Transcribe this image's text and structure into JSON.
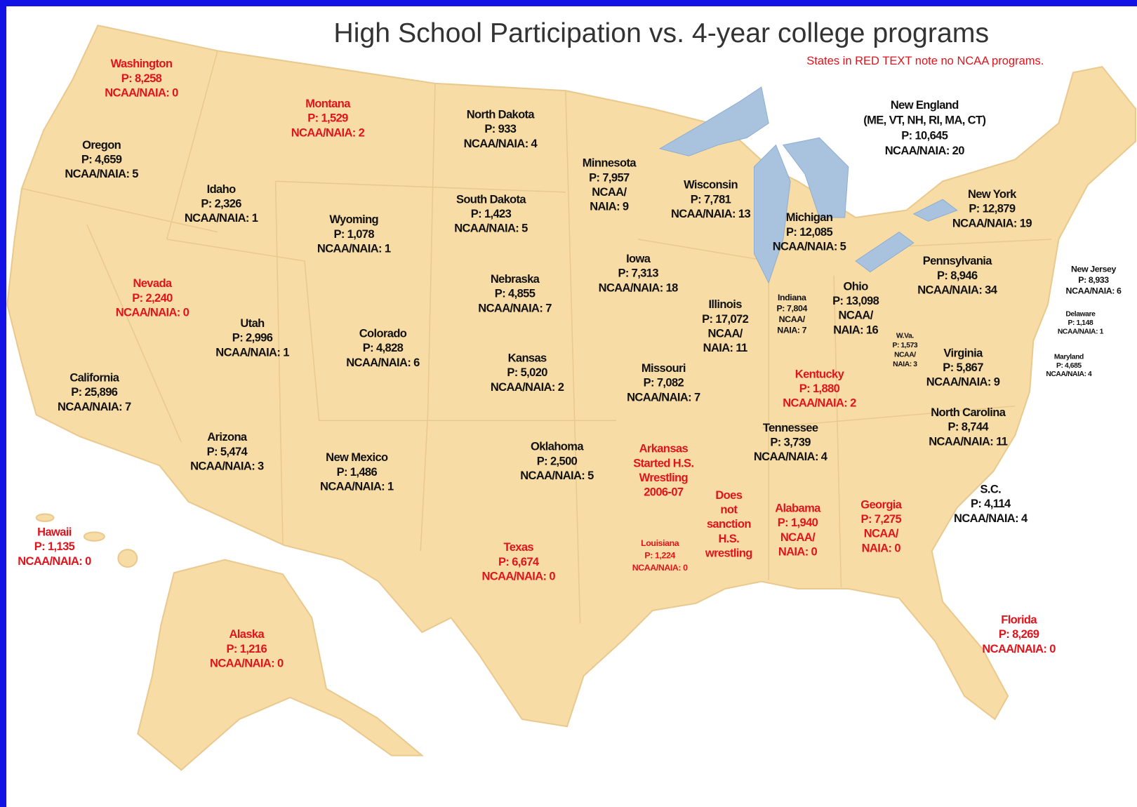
{
  "header": {
    "title": "High School Participation vs. 4-year college programs",
    "note": "States in RED TEXT note no NCAA programs."
  },
  "states": [
    {
      "lines": [
        "Washington",
        "P: 8,258",
        "NCAA/NAIA: 0"
      ],
      "color": "#e0141c"
    },
    {
      "lines": [
        "Oregon",
        "P: 4,659",
        "NCAA/NAIA: 5"
      ],
      "color": "#111111"
    },
    {
      "lines": [
        "Montana",
        "P: 1,529",
        "NCAA/NAIA: 2"
      ],
      "color": "#e0141c"
    },
    {
      "lines": [
        "Idaho",
        "P: 2,326",
        "NCAA/NAIA: 1"
      ],
      "color": "#111111"
    },
    {
      "lines": [
        "Wyoming",
        "P: 1,078",
        "NCAA/NAIA: 1"
      ],
      "color": "#111111"
    },
    {
      "lines": [
        "North Dakota",
        "P: 933",
        "NCAA/NAIA: 4"
      ],
      "color": "#111111"
    },
    {
      "lines": [
        "South Dakota",
        "P: 1,423",
        "NCAA/NAIA: 5"
      ],
      "color": "#111111"
    },
    {
      "lines": [
        "Minnesota",
        "P: 7,957",
        "NCAA/",
        "NAIA: 9"
      ],
      "color": "#111111"
    },
    {
      "lines": [
        "Wisconsin",
        "P: 7,781",
        "NCAA/NAIA: 13"
      ],
      "color": "#111111"
    },
    {
      "lines": [
        "Michigan",
        "P: 12,085",
        "NCAA/NAIA: 5"
      ],
      "color": "#111111"
    },
    {
      "lines": [
        "New England",
        "(ME, VT, NH, RI, MA, CT)",
        "P: 10,645",
        "NCAA/NAIA: 20"
      ],
      "color": "#111111"
    },
    {
      "lines": [
        "New York",
        "P: 12,879",
        "NCAA/NAIA: 19"
      ],
      "color": "#111111"
    },
    {
      "lines": [
        "Pennsylvania",
        "P: 8,946",
        "NCAA/NAIA: 34"
      ],
      "color": "#111111"
    },
    {
      "lines": [
        "New Jersey",
        "P: 8,933",
        "NCAA/NAIA: 6"
      ],
      "color": "#111111"
    },
    {
      "lines": [
        "Delaware",
        "P: 1,148",
        "NCAA/NAIA: 1"
      ],
      "color": "#111111"
    },
    {
      "lines": [
        "Maryland",
        "P: 4,685",
        "NCAA/NAIA: 4"
      ],
      "color": "#111111"
    },
    {
      "lines": [
        "Nevada",
        "P: 2,240",
        "NCAA/NAIA: 0"
      ],
      "color": "#e0141c"
    },
    {
      "lines": [
        "Utah",
        "P: 2,996",
        "NCAA/NAIA: 1"
      ],
      "color": "#111111"
    },
    {
      "lines": [
        "Colorado",
        "P: 4,828",
        "NCAA/NAIA: 6"
      ],
      "color": "#111111"
    },
    {
      "lines": [
        "Nebraska",
        "P: 4,855",
        "NCAA/NAIA: 7"
      ],
      "color": "#111111"
    },
    {
      "lines": [
        "Iowa",
        "P: 7,313",
        "NCAA/NAIA: 18"
      ],
      "color": "#111111"
    },
    {
      "lines": [
        "Illinois",
        "P: 17,072",
        "NCAA/",
        "NAIA: 11"
      ],
      "color": "#111111"
    },
    {
      "lines": [
        "Indiana",
        "P: 7,804",
        "NCAA/",
        "NAIA: 7"
      ],
      "color": "#111111"
    },
    {
      "lines": [
        "Ohio",
        "P: 13,098",
        "NCAA/",
        "NAIA: 16"
      ],
      "color": "#111111"
    },
    {
      "lines": [
        "W.Va.",
        "P: 1,573",
        "NCAA/",
        "NAIA: 3"
      ],
      "color": "#111111"
    },
    {
      "lines": [
        "Virginia",
        "P: 5,867",
        "NCAA/NAIA: 9"
      ],
      "color": "#111111"
    },
    {
      "lines": [
        "California",
        "P: 25,896",
        "NCAA/NAIA: 7"
      ],
      "color": "#111111"
    },
    {
      "lines": [
        "Kansas",
        "P: 5,020",
        "NCAA/NAIA: 2"
      ],
      "color": "#111111"
    },
    {
      "lines": [
        "Missouri",
        "P: 7,082",
        "NCAA/NAIA: 7"
      ],
      "color": "#111111"
    },
    {
      "lines": [
        "Kentucky",
        "P: 1,880",
        "NCAA/NAIA: 2"
      ],
      "color": "#e0141c"
    },
    {
      "lines": [
        "North Carolina",
        "P: 8,744",
        "NCAA/NAIA: 11"
      ],
      "color": "#111111"
    },
    {
      "lines": [
        "Tennessee",
        "P: 3,739",
        "NCAA/NAIA: 4"
      ],
      "color": "#111111"
    },
    {
      "lines": [
        "Arizona",
        "P: 5,474",
        "NCAA/NAIA: 3"
      ],
      "color": "#111111"
    },
    {
      "lines": [
        "New Mexico",
        "P: 1,486",
        "NCAA/NAIA: 1"
      ],
      "color": "#111111"
    },
    {
      "lines": [
        "Oklahoma",
        "P: 2,500",
        "NCAA/NAIA: 5"
      ],
      "color": "#111111"
    },
    {
      "lines": [
        "Arkansas",
        "Started H.S.",
        "Wrestling",
        "2006-07"
      ],
      "color": "#e0141c"
    },
    {
      "lines": [
        "Does",
        "not",
        "sanction",
        "H.S.",
        "wrestling"
      ],
      "color": "#e0141c"
    },
    {
      "lines": [
        "Alabama",
        "P: 1,940",
        "NCAA/",
        "NAIA: 0"
      ],
      "color": "#e0141c"
    },
    {
      "lines": [
        "Georgia",
        "P: 7,275",
        "NCAA/",
        "NAIA: 0"
      ],
      "color": "#e0141c"
    },
    {
      "lines": [
        "S.C.",
        "P: 4,114",
        "NCAA/NAIA: 4"
      ],
      "color": "#111111"
    },
    {
      "lines": [
        "Hawaii",
        "P: 1,135",
        "NCAA/NAIA: 0"
      ],
      "color": "#e0141c"
    },
    {
      "lines": [
        "Texas",
        "P: 6,674",
        "NCAA/NAIA: 0"
      ],
      "color": "#e0141c"
    },
    {
      "lines": [
        "Louisiana",
        "P: 1,224",
        "NCAA/NAIA: 0"
      ],
      "color": "#e0141c"
    },
    {
      "lines": [
        "Florida",
        "P: 8,269",
        "NCAA/NAIA: 0"
      ],
      "color": "#e0141c"
    },
    {
      "lines": [
        "Alaska",
        "P: 1,216",
        "NCAA/NAIA: 0"
      ],
      "color": "#e0141c"
    }
  ]
}
